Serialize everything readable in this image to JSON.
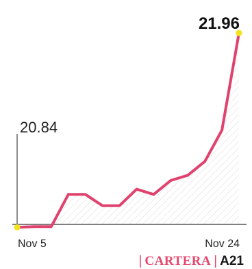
{
  "chart_data": {
    "type": "line",
    "x": [
      "Nov 5",
      "",
      "",
      "",
      "",
      "",
      "",
      "",
      "",
      "",
      "",
      "",
      "",
      "Nov 24"
    ],
    "series": [
      {
        "values": [
          20.84,
          20.844,
          20.844,
          21.03,
          21.03,
          20.965,
          20.965,
          21.06,
          21.03,
          21.11,
          21.14,
          21.22,
          21.4,
          21.96
        ]
      }
    ],
    "start_label": "20.84",
    "end_label": "21.96",
    "xtick_labels": [
      "Nov 5",
      "Nov 24"
    ],
    "ylim": [
      20.6,
      22.15
    ],
    "grid": false,
    "colors": {
      "line": "#e0426e",
      "marker": "#f4e21c",
      "hatch": "#dedede",
      "axis": "#333333"
    }
  },
  "footer": {
    "section": "CARTERA",
    "page": "A21"
  }
}
